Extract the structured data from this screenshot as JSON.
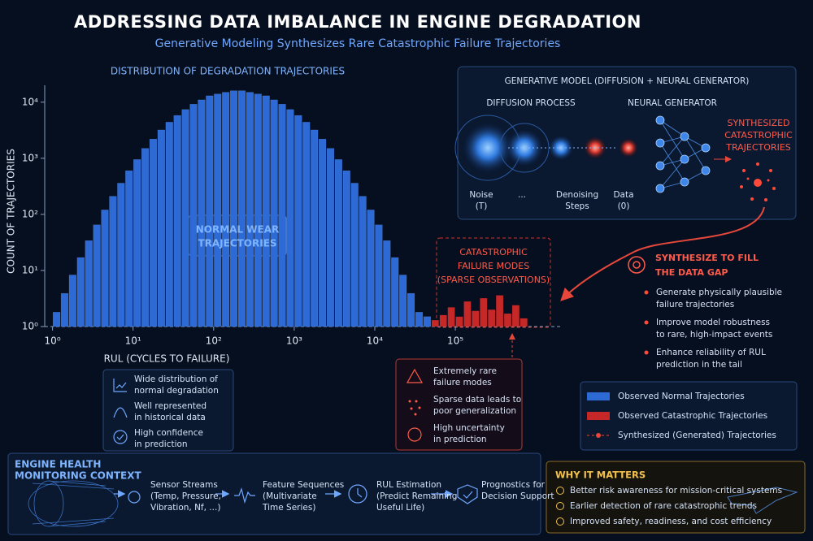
{
  "header": {
    "title": "ADDRESSING DATA IMBALANCE IN ENGINE DEGRADATION",
    "subtitle": "Generative Modeling Synthesizes Rare Catastrophic Failure Trajectories"
  },
  "chart_data": {
    "type": "histogram",
    "title": "DISTRIBUTION OF DEGRADATION TRAJECTORIES",
    "x_label": "RUL (CYCLES TO FAILURE)",
    "y_label": "COUNT OF TRAJECTORIES",
    "log_x": true,
    "log_y": true,
    "grid": false,
    "xlim": [
      0.8,
      2000000
    ],
    "ylim": [
      1,
      20000
    ],
    "xticks": [
      {
        "value": 1,
        "label": "10⁰"
      },
      {
        "value": 10,
        "label": "10¹"
      },
      {
        "value": 100,
        "label": "10²"
      },
      {
        "value": 1000,
        "label": "10³"
      },
      {
        "value": 10000,
        "label": "10⁴"
      },
      {
        "value": 100000,
        "label": "10⁵"
      }
    ],
    "yticks": [
      {
        "value": 1,
        "label": "10⁰"
      },
      {
        "value": 10,
        "label": "10¹"
      },
      {
        "value": 100,
        "label": "10²"
      },
      {
        "value": 1000,
        "label": "10³"
      },
      {
        "value": 10000,
        "label": "10⁴"
      }
    ],
    "series": [
      {
        "name": "Observed Normal Trajectories",
        "color": "#2d6ad6",
        "bins": [
          1,
          1.259,
          1.585,
          1.995,
          2.512,
          3.162,
          3.981,
          5.012,
          6.31,
          7.943,
          10,
          12.59,
          15.85,
          19.95,
          25.12,
          31.62,
          39.81,
          50.12,
          63.1,
          79.43,
          100,
          125.9,
          158.5,
          199.5,
          251.2,
          316.2,
          398.1,
          501.2,
          631,
          794.3,
          1000,
          1259,
          1585,
          1995,
          2512,
          3162,
          3981,
          5012,
          6310,
          7943,
          10000,
          12589,
          15849,
          19953,
          25119,
          31623,
          39811,
          50119
        ],
        "values": [
          1.8,
          3.9,
          8.3,
          17,
          34,
          65,
          120,
          210,
          360,
          600,
          950,
          1500,
          2200,
          3200,
          4400,
          5800,
          7400,
          9200,
          11000,
          13000,
          14000,
          15000,
          16000,
          16000,
          15000,
          14000,
          13000,
          11000,
          9200,
          7400,
          5800,
          4400,
          3200,
          2200,
          1500,
          950,
          600,
          360,
          210,
          120,
          65,
          34,
          17,
          8.3,
          3.9,
          1.8,
          1.5
        ]
      },
      {
        "name": "Observed Catastrophic Trajectories",
        "color": "#c62828",
        "bins": [
          50119,
          63096,
          79433,
          100000,
          125893,
          158489,
          199526,
          251189,
          316228,
          398107,
          501187,
          630957,
          794328
        ],
        "values": [
          1.3,
          1.6,
          2.2,
          1.5,
          2.8,
          1.9,
          3.2,
          2.0,
          3.6,
          1.7,
          2.4,
          1.4
        ]
      }
    ],
    "synthesized_label": "Synthesized (Generated) Trajectories",
    "synthesized_color": "#e5483b",
    "annotations": {
      "normal": [
        "NORMAL WEAR",
        "TRAJECTORIES"
      ],
      "catastrophic": [
        "CATASTROPHIC",
        "FAILURE MODES"
      ],
      "sparse": "(SPARSE OBSERVATIONS)"
    }
  },
  "generative_model": {
    "title": "GENERATIVE MODEL (DIFFUSION + NEURAL GENERATOR)",
    "diffusion": "DIFFUSION PROCESS",
    "generator": "NEURAL GENERATOR",
    "noise": [
      "Noise",
      "(T)"
    ],
    "ellipsis": "...",
    "denoising": [
      "Denoising",
      "Steps"
    ],
    "data": [
      "Data",
      "(0)"
    ],
    "output": [
      "SYNTHESIZED",
      "CATASTROPHIC",
      "TRAJECTORIES"
    ]
  },
  "synthesize": {
    "title": [
      "SYNTHESIZE TO FILL",
      "THE DATA GAP"
    ],
    "bullets": [
      [
        "Generate physically plausible",
        "failure trajectories"
      ],
      [
        "Improve model robustness",
        "to rare, high-impact events"
      ],
      [
        "Enhance reliability of RUL",
        "prediction in the tail"
      ]
    ]
  },
  "normal_info": [
    [
      "Wide distribution of",
      "normal degradation"
    ],
    [
      "Well represented",
      "in historical data"
    ],
    [
      "High confidence",
      "in prediction"
    ]
  ],
  "rare_info": [
    [
      "Extremely rare",
      "failure modes"
    ],
    [
      "Sparse data leads to",
      "poor generalization"
    ],
    [
      "High uncertainty",
      "in prediction"
    ]
  ],
  "context": {
    "title": [
      "ENGINE HEALTH",
      "MONITORING CONTEXT"
    ],
    "steps": [
      [
        "Sensor Streams",
        "(Temp, Pressure,",
        "Vibration, Nf, ...)"
      ],
      [
        "Feature Sequences",
        "(Multivariate",
        "Time Series)"
      ],
      [
        "RUL Estimation",
        "(Predict Remaining",
        "Useful Life)"
      ],
      [
        "Prognostics for",
        "Decision Support"
      ]
    ]
  },
  "why": {
    "title": "WHY IT MATTERS",
    "items": [
      "Better risk awareness for mission-critical systems",
      "Earlier detection of rare catastrophic trends",
      "Improved safety, readiness, and cost efficiency"
    ]
  }
}
